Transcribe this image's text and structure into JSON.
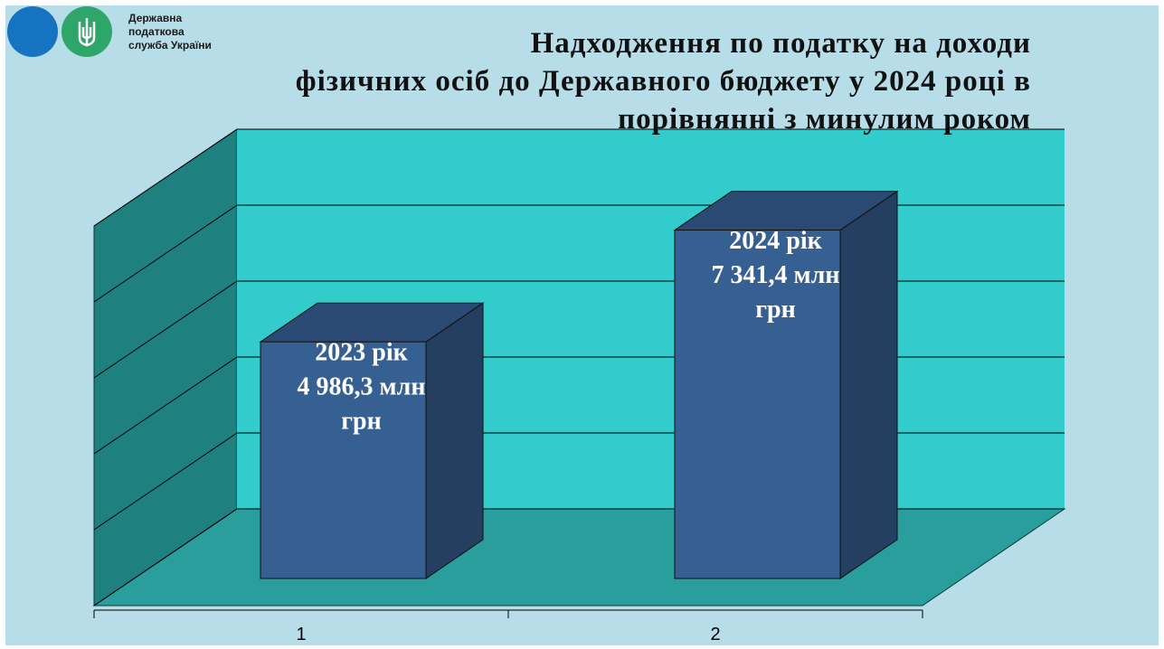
{
  "logo": {
    "lines": [
      "Державна",
      "податкова",
      "служба України"
    ]
  },
  "chart_data": {
    "type": "bar3d",
    "title": [
      "Надходження по податку на доходи",
      "фізичних осіб до Державного бюджету у 2024 році в",
      "порівнянні з минулим роком"
    ],
    "categories": [
      "1",
      "2"
    ],
    "values": [
      4986.3,
      7341.4
    ],
    "value_labels": [
      [
        "2023 рік",
        "4 986,3 млн",
        "грн"
      ],
      [
        "2024 рік",
        "7 341,4 млн",
        "грн"
      ]
    ],
    "color": "#376092",
    "ylim": [
      0,
      8000
    ],
    "yticks": [
      0,
      1600,
      3200,
      4800,
      6400,
      8000
    ],
    "grid": true
  }
}
